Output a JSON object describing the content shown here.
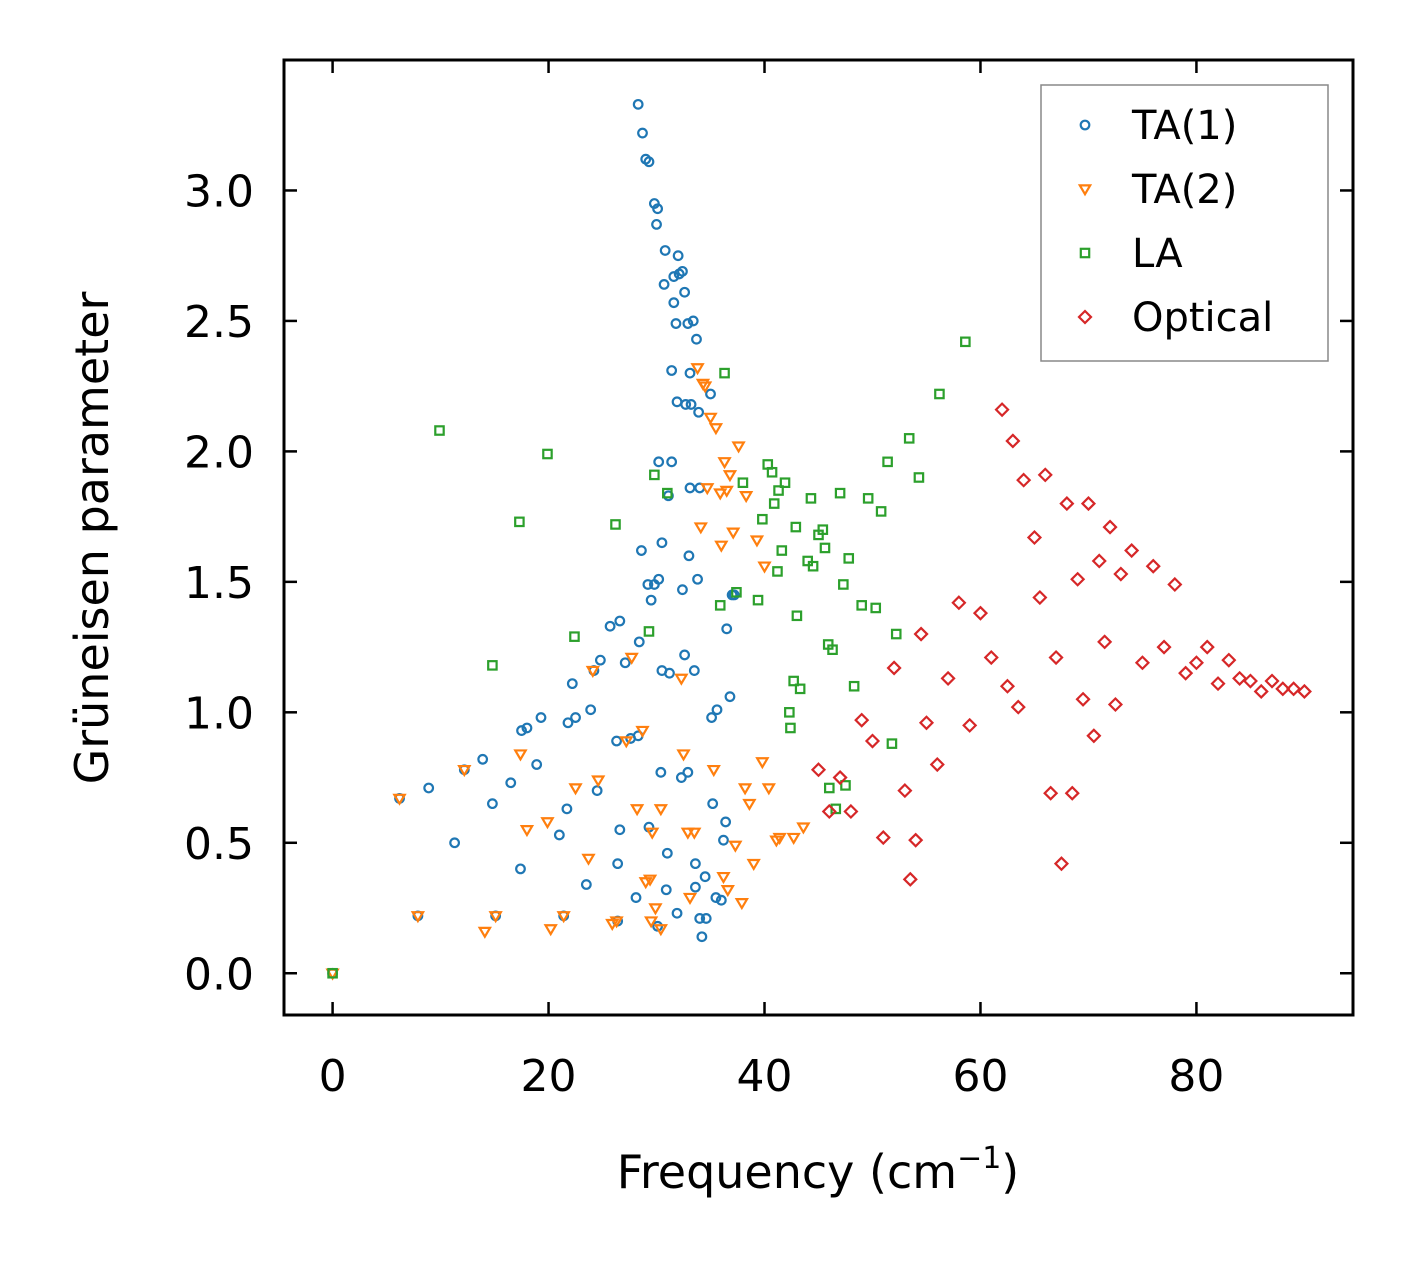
{
  "chart_data": {
    "type": "scatter",
    "xlabel": "Frequency (cm",
    "xlabel_sup": "−1",
    "xlabel_close": ")",
    "ylabel": "Grüneisen parameter",
    "xlim": [
      -4.5,
      94.5
    ],
    "ylim": [
      -0.16,
      3.5
    ],
    "xticks": [
      0,
      20,
      40,
      60,
      80
    ],
    "xtick_labels": [
      "0",
      "20",
      "40",
      "60",
      "80"
    ],
    "yticks": [
      0.0,
      0.5,
      1.0,
      1.5,
      2.0,
      2.5,
      3.0
    ],
    "ytick_labels": [
      "0.0",
      "0.5",
      "1.0",
      "1.5",
      "2.0",
      "2.5",
      "3.0"
    ],
    "legend_position": "top-right",
    "series": [
      {
        "name": "TA(1)",
        "marker": "circle",
        "color": "#1f77b4",
        "points": [
          [
            0,
            0
          ],
          [
            6.2,
            0.67
          ],
          [
            7.9,
            0.22
          ],
          [
            8.9,
            0.71
          ],
          [
            11.3,
            0.5
          ],
          [
            12.2,
            0.78
          ],
          [
            13.9,
            0.82
          ],
          [
            14.8,
            0.65
          ],
          [
            15.1,
            0.22
          ],
          [
            16.5,
            0.73
          ],
          [
            17.4,
            0.4
          ],
          [
            17.5,
            0.93
          ],
          [
            18.0,
            0.94
          ],
          [
            18.9,
            0.8
          ],
          [
            19.3,
            0.98
          ],
          [
            21.0,
            0.53
          ],
          [
            21.4,
            0.22
          ],
          [
            21.7,
            0.63
          ],
          [
            21.8,
            0.96
          ],
          [
            22.2,
            1.11
          ],
          [
            22.5,
            0.98
          ],
          [
            23.5,
            0.34
          ],
          [
            23.9,
            1.01
          ],
          [
            24.2,
            1.16
          ],
          [
            24.5,
            0.7
          ],
          [
            24.8,
            1.2
          ],
          [
            25.7,
            1.33
          ],
          [
            26.3,
            0.89
          ],
          [
            26.4,
            0.42
          ],
          [
            26.6,
            1.35
          ],
          [
            26.6,
            0.55
          ],
          [
            26.4,
            0.2
          ],
          [
            27.1,
            1.19
          ],
          [
            27.6,
            0.9
          ],
          [
            28.1,
            0.29
          ],
          [
            28.4,
            1.27
          ],
          [
            28.3,
            0.91
          ],
          [
            28.3,
            3.33
          ],
          [
            28.6,
            1.62
          ],
          [
            28.7,
            3.22
          ],
          [
            29.0,
            3.12
          ],
          [
            29.2,
            1.49
          ],
          [
            29.3,
            3.11
          ],
          [
            29.3,
            0.56
          ],
          [
            29.5,
            1.43
          ],
          [
            29.8,
            1.49
          ],
          [
            29.8,
            2.95
          ],
          [
            30.0,
            2.87
          ],
          [
            30.1,
            2.93
          ],
          [
            30.1,
            0.18
          ],
          [
            30.2,
            1.96
          ],
          [
            30.2,
            1.51
          ],
          [
            30.4,
            0.77
          ],
          [
            30.5,
            1.16
          ],
          [
            30.5,
            1.65
          ],
          [
            30.7,
            2.64
          ],
          [
            30.8,
            2.77
          ],
          [
            30.9,
            0.32
          ],
          [
            31.0,
            0.46
          ],
          [
            31.1,
            1.83
          ],
          [
            31.2,
            1.15
          ],
          [
            31.4,
            2.31
          ],
          [
            31.4,
            1.96
          ],
          [
            31.6,
            2.57
          ],
          [
            31.6,
            2.67
          ],
          [
            31.8,
            2.49
          ],
          [
            31.9,
            2.19
          ],
          [
            31.9,
            0.23
          ],
          [
            32.0,
            2.75
          ],
          [
            32.1,
            2.68
          ],
          [
            32.3,
            0.75
          ],
          [
            32.4,
            1.47
          ],
          [
            32.4,
            2.69
          ],
          [
            32.6,
            1.22
          ],
          [
            32.6,
            2.61
          ],
          [
            32.7,
            2.18
          ],
          [
            32.9,
            2.49
          ],
          [
            32.9,
            0.77
          ],
          [
            33.0,
            1.6
          ],
          [
            33.1,
            1.86
          ],
          [
            33.1,
            2.3
          ],
          [
            33.2,
            2.18
          ],
          [
            33.4,
            2.5
          ],
          [
            33.5,
            1.16
          ],
          [
            33.6,
            0.42
          ],
          [
            33.6,
            0.33
          ],
          [
            33.7,
            2.43
          ],
          [
            33.8,
            1.51
          ],
          [
            33.9,
            2.15
          ],
          [
            34.0,
            0.21
          ],
          [
            34.0,
            1.86
          ],
          [
            34.2,
            0.14
          ],
          [
            34.5,
            0.37
          ],
          [
            34.6,
            0.21
          ],
          [
            35.0,
            2.22
          ],
          [
            35.1,
            0.98
          ],
          [
            35.2,
            0.65
          ],
          [
            35.5,
            0.29
          ],
          [
            35.6,
            1.01
          ],
          [
            36.0,
            0.28
          ],
          [
            36.2,
            0.51
          ],
          [
            36.4,
            0.58
          ],
          [
            36.5,
            1.32
          ],
          [
            36.8,
            1.06
          ],
          [
            37.0,
            1.45
          ],
          [
            37.2,
            1.45
          ]
        ]
      },
      {
        "name": "TA(2)",
        "marker": "triangle-down",
        "color": "#ff7f0e",
        "points": [
          [
            0,
            0
          ],
          [
            6.2,
            0.67
          ],
          [
            7.9,
            0.22
          ],
          [
            12.2,
            0.78
          ],
          [
            14.1,
            0.16
          ],
          [
            15.1,
            0.22
          ],
          [
            17.4,
            0.84
          ],
          [
            18.0,
            0.55
          ],
          [
            19.9,
            0.58
          ],
          [
            20.2,
            0.17
          ],
          [
            21.4,
            0.22
          ],
          [
            22.5,
            0.71
          ],
          [
            23.7,
            0.44
          ],
          [
            24.1,
            1.16
          ],
          [
            24.6,
            0.74
          ],
          [
            25.9,
            0.19
          ],
          [
            26.3,
            0.2
          ],
          [
            27.2,
            0.89
          ],
          [
            27.7,
            1.21
          ],
          [
            28.2,
            0.63
          ],
          [
            28.7,
            0.93
          ],
          [
            29.0,
            0.35
          ],
          [
            29.4,
            0.36
          ],
          [
            29.5,
            0.2
          ],
          [
            29.6,
            0.54
          ],
          [
            29.9,
            0.25
          ],
          [
            30.4,
            0.17
          ],
          [
            30.4,
            0.63
          ],
          [
            32.3,
            1.13
          ],
          [
            32.5,
            0.84
          ],
          [
            32.9,
            0.54
          ],
          [
            33.1,
            0.29
          ],
          [
            33.5,
            0.54
          ],
          [
            33.8,
            2.32
          ],
          [
            34.1,
            1.71
          ],
          [
            34.3,
            2.26
          ],
          [
            34.5,
            2.25
          ],
          [
            34.7,
            1.86
          ],
          [
            35.0,
            2.13
          ],
          [
            35.3,
            0.78
          ],
          [
            35.5,
            2.09
          ],
          [
            35.9,
            1.84
          ],
          [
            36.0,
            1.64
          ],
          [
            36.2,
            0.37
          ],
          [
            36.3,
            1.96
          ],
          [
            36.5,
            1.85
          ],
          [
            36.6,
            0.32
          ],
          [
            36.8,
            1.91
          ],
          [
            37.1,
            1.69
          ],
          [
            37.3,
            0.49
          ],
          [
            37.6,
            2.02
          ],
          [
            37.9,
            0.27
          ],
          [
            38.2,
            0.71
          ],
          [
            38.3,
            1.83
          ],
          [
            38.6,
            0.65
          ],
          [
            39.0,
            0.42
          ],
          [
            39.3,
            1.66
          ],
          [
            39.8,
            0.81
          ],
          [
            40.0,
            1.56
          ],
          [
            40.4,
            0.71
          ],
          [
            41.1,
            0.51
          ],
          [
            41.4,
            0.52
          ],
          [
            42.7,
            0.52
          ],
          [
            43.6,
            0.56
          ]
        ]
      },
      {
        "name": "LA",
        "marker": "square",
        "color": "#2ca02c",
        "points": [
          [
            0,
            0
          ],
          [
            9.9,
            2.08
          ],
          [
            14.8,
            1.18
          ],
          [
            17.3,
            1.73
          ],
          [
            19.9,
            1.99
          ],
          [
            22.4,
            1.29
          ],
          [
            26.2,
            1.72
          ],
          [
            29.3,
            1.31
          ],
          [
            29.8,
            1.91
          ],
          [
            31.0,
            1.84
          ],
          [
            35.9,
            1.41
          ],
          [
            36.3,
            2.3
          ],
          [
            37.4,
            1.46
          ],
          [
            38.0,
            1.88
          ],
          [
            39.4,
            1.43
          ],
          [
            39.8,
            1.74
          ],
          [
            40.3,
            1.95
          ],
          [
            40.7,
            1.92
          ],
          [
            40.9,
            1.8
          ],
          [
            41.2,
            1.54
          ],
          [
            41.3,
            1.85
          ],
          [
            41.6,
            1.62
          ],
          [
            41.9,
            1.88
          ],
          [
            42.3,
            1.0
          ],
          [
            42.4,
            0.94
          ],
          [
            42.7,
            1.12
          ],
          [
            42.9,
            1.71
          ],
          [
            43.0,
            1.37
          ],
          [
            43.3,
            1.09
          ],
          [
            44.0,
            1.58
          ],
          [
            44.3,
            1.82
          ],
          [
            44.5,
            1.56
          ],
          [
            45.0,
            1.68
          ],
          [
            45.4,
            1.7
          ],
          [
            45.6,
            1.63
          ],
          [
            45.9,
            1.26
          ],
          [
            46.0,
            0.71
          ],
          [
            46.3,
            1.24
          ],
          [
            46.6,
            0.63
          ],
          [
            47.0,
            1.84
          ],
          [
            47.3,
            1.49
          ],
          [
            47.5,
            0.72
          ],
          [
            47.8,
            1.59
          ],
          [
            48.3,
            1.1
          ],
          [
            49.0,
            1.41
          ],
          [
            49.6,
            1.82
          ],
          [
            50.3,
            1.4
          ],
          [
            50.8,
            1.77
          ],
          [
            51.4,
            1.96
          ],
          [
            51.8,
            0.88
          ],
          [
            52.2,
            1.3
          ],
          [
            53.4,
            2.05
          ],
          [
            54.3,
            1.9
          ],
          [
            56.2,
            2.22
          ],
          [
            58.6,
            2.42
          ]
        ]
      },
      {
        "name": "Optical",
        "marker": "diamond",
        "color": "#d62728",
        "points": [
          [
            45,
            0.78
          ],
          [
            46,
            0.62
          ],
          [
            47,
            0.75
          ],
          [
            48,
            0.62
          ],
          [
            49,
            0.97
          ],
          [
            50,
            0.89
          ],
          [
            51,
            0.52
          ],
          [
            52,
            1.17
          ],
          [
            53,
            0.7
          ],
          [
            53.5,
            0.36
          ],
          [
            54,
            0.51
          ],
          [
            54.5,
            1.3
          ],
          [
            55,
            0.96
          ],
          [
            56,
            0.8
          ],
          [
            57,
            1.13
          ],
          [
            58,
            1.42
          ],
          [
            59,
            0.95
          ],
          [
            60,
            1.38
          ],
          [
            61,
            1.21
          ],
          [
            62,
            2.16
          ],
          [
            62.5,
            1.1
          ],
          [
            63,
            2.04
          ],
          [
            63.5,
            1.02
          ],
          [
            64,
            1.89
          ],
          [
            65,
            1.67
          ],
          [
            65.5,
            1.44
          ],
          [
            66,
            1.91
          ],
          [
            66.5,
            0.69
          ],
          [
            67,
            1.21
          ],
          [
            67.5,
            0.42
          ],
          [
            68,
            1.8
          ],
          [
            68.5,
            0.69
          ],
          [
            69,
            1.51
          ],
          [
            69.5,
            1.05
          ],
          [
            70,
            1.8
          ],
          [
            70.5,
            0.91
          ],
          [
            71,
            1.58
          ],
          [
            71.5,
            1.27
          ],
          [
            72,
            1.71
          ],
          [
            72.5,
            1.03
          ],
          [
            73,
            1.53
          ],
          [
            74,
            1.62
          ],
          [
            75,
            1.19
          ],
          [
            76,
            1.56
          ],
          [
            77,
            1.25
          ],
          [
            78,
            1.49
          ],
          [
            79,
            1.15
          ],
          [
            80,
            1.19
          ],
          [
            81,
            1.25
          ],
          [
            82,
            1.11
          ],
          [
            83,
            1.2
          ],
          [
            84,
            1.13
          ],
          [
            85,
            1.12
          ],
          [
            86,
            1.08
          ],
          [
            87,
            1.12
          ],
          [
            88,
            1.09
          ],
          [
            89,
            1.09
          ],
          [
            90,
            1.08
          ]
        ]
      }
    ]
  }
}
